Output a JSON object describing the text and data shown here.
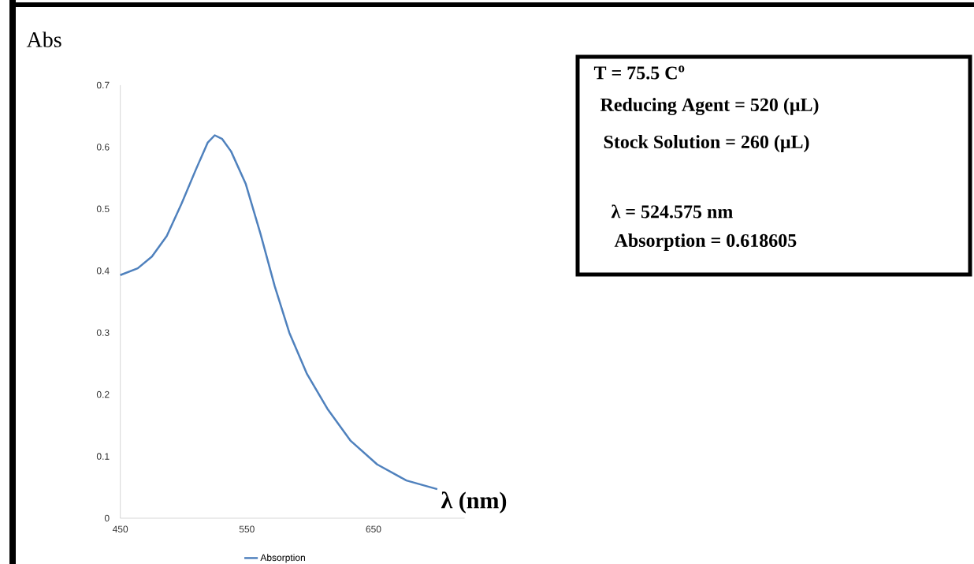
{
  "chart_data": {
    "type": "line",
    "ylabel": "Abs",
    "xlabel": "**λ** (nm)",
    "xlim": [
      450,
      722
    ],
    "ylim": [
      0,
      0.7
    ],
    "xticks": [
      450,
      550,
      650
    ],
    "yticks": [
      0,
      0.1,
      0.2,
      0.3,
      0.4,
      0.5,
      0.6,
      0.7
    ],
    "x": [
      450,
      463.8,
      475,
      486.7,
      498.3,
      509.8,
      519,
      524.6,
      530.5,
      537.5,
      549,
      560.7,
      572,
      583.5,
      597.5,
      613.6,
      632,
      652.9,
      676,
      700.4
    ],
    "series": [
      {
        "name": "Absorption",
        "color": "#4f81bd",
        "values": [
          0.393,
          0.404,
          0.423,
          0.456,
          0.508,
          0.564,
          0.607,
          0.619,
          0.613,
          0.593,
          0.541,
          0.46,
          0.375,
          0.3,
          0.233,
          0.177,
          0.125,
          0.087,
          0.061,
          0.047
        ]
      }
    ],
    "marker": "none",
    "legend": "bottom",
    "annotations": [
      "T = 75.5 C$^{o}$",
      "Reducing Agent = 520 (μL)",
      "Stock Solution = 260 (μL)",
      "λ = 524.575 nm",
      "Absorption = 0.618605"
    ]
  }
}
